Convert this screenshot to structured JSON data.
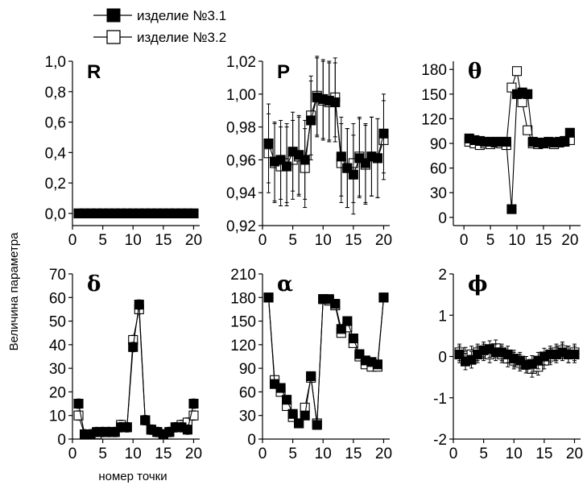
{
  "ylabel": "Величина параметра",
  "xlabel": "номер точки",
  "legend": {
    "items": [
      {
        "label": "изделие №3.1",
        "marker": "filled-square",
        "color": "#000000"
      },
      {
        "label": "изделие №3.2",
        "marker": "open-square",
        "color": "#000000"
      }
    ]
  },
  "chart_data": [
    {
      "type": "scatter",
      "title": "R",
      "title_style": "latin",
      "xlim": [
        0,
        21
      ],
      "ylim": [
        -0.08,
        1.0
      ],
      "xticks": [
        0,
        5,
        10,
        15,
        20
      ],
      "yticks": [
        0.0,
        0.2,
        0.4,
        0.6,
        0.8,
        1.0
      ],
      "ytick_labels": [
        "0,0",
        "0,2",
        "0,4",
        "0,6",
        "0,8",
        "1,0"
      ],
      "series": [
        {
          "name": "изделие №3.1",
          "connect": false,
          "x": [
            1,
            2,
            3,
            4,
            5,
            6,
            7,
            8,
            9,
            10,
            11,
            12,
            13,
            14,
            15,
            16,
            17,
            18,
            19,
            20
          ],
          "y": [
            0,
            0,
            0,
            0,
            0,
            0,
            0,
            0,
            0,
            0,
            0,
            0,
            0,
            0,
            0,
            0,
            0,
            0,
            0,
            0
          ],
          "err": [
            0.015,
            0.015,
            0.015,
            0.015,
            0.015,
            0.015,
            0.015,
            0.015,
            0.015,
            0.015,
            0.015,
            0.015,
            0.015,
            0.015,
            0.015,
            0.015,
            0.015,
            0.015,
            0.015,
            0.015
          ]
        },
        {
          "name": "изделие №3.2",
          "connect": false,
          "x": [
            1,
            2,
            3,
            4,
            5,
            6,
            7,
            8,
            9,
            10,
            11,
            12,
            13,
            14,
            15,
            16,
            17,
            18,
            19,
            20
          ],
          "y": [
            0,
            0,
            0,
            0,
            0,
            0,
            0,
            0,
            0,
            0,
            0,
            0,
            0,
            0,
            0,
            0,
            0,
            0,
            0,
            0
          ],
          "err": [
            0.015,
            0.015,
            0.015,
            0.015,
            0.015,
            0.015,
            0.015,
            0.015,
            0.015,
            0.015,
            0.015,
            0.015,
            0.015,
            0.015,
            0.015,
            0.015,
            0.015,
            0.015,
            0.015,
            0.015
          ]
        }
      ]
    },
    {
      "type": "scatter",
      "title": "P",
      "title_style": "latin",
      "xlim": [
        0,
        21
      ],
      "ylim": [
        0.92,
        1.02
      ],
      "xticks": [
        0,
        5,
        10,
        15,
        20
      ],
      "yticks": [
        0.92,
        0.94,
        0.96,
        0.98,
        1.0,
        1.02
      ],
      "ytick_labels": [
        "0,92",
        "0,94",
        "0,96",
        "0,98",
        "1,00",
        "1,02"
      ],
      "series": [
        {
          "name": "изделие №3.1",
          "connect": true,
          "x": [
            1,
            2,
            3,
            4,
            5,
            6,
            7,
            8,
            9,
            10,
            11,
            12,
            13,
            14,
            15,
            16,
            17,
            18,
            19,
            20
          ],
          "y": [
            0.97,
            0.959,
            0.96,
            0.956,
            0.965,
            0.963,
            0.96,
            0.984,
            0.998,
            0.997,
            0.996,
            0.995,
            0.962,
            0.955,
            0.951,
            0.961,
            0.958,
            0.962,
            0.961,
            0.976
          ],
          "err": [
            0.024,
            0.024,
            0.024,
            0.024,
            0.024,
            0.024,
            0.024,
            0.024,
            0.024,
            0.024,
            0.024,
            0.024,
            0.024,
            0.024,
            0.024,
            0.024,
            0.024,
            0.024,
            0.024,
            0.024
          ]
        },
        {
          "name": "изделие №3.2",
          "connect": true,
          "x": [
            1,
            2,
            3,
            4,
            5,
            6,
            7,
            8,
            9,
            10,
            11,
            12,
            13,
            14,
            15,
            16,
            17,
            18,
            19,
            20
          ],
          "y": [
            0.964,
            0.958,
            0.956,
            0.958,
            0.96,
            0.962,
            0.955,
            0.987,
            0.999,
            0.996,
            0.995,
            0.998,
            0.958,
            0.955,
            0.958,
            0.962,
            0.957,
            0.962,
            0.961,
            0.972
          ],
          "err": [
            0.024,
            0.024,
            0.024,
            0.024,
            0.024,
            0.024,
            0.024,
            0.024,
            0.024,
            0.024,
            0.024,
            0.024,
            0.024,
            0.024,
            0.024,
            0.024,
            0.024,
            0.024,
            0.024,
            0.024
          ]
        }
      ]
    },
    {
      "type": "scatter",
      "title": "θ",
      "title_style": "greek",
      "xlim": [
        -2,
        22
      ],
      "ylim": [
        -10,
        190
      ],
      "xticks": [
        0,
        5,
        10,
        15,
        20
      ],
      "yticks": [
        0,
        30,
        60,
        90,
        120,
        150,
        180
      ],
      "ytick_labels": [
        "0",
        "30",
        "60",
        "90",
        "120",
        "150",
        "180"
      ],
      "series": [
        {
          "name": "изделие №3.1",
          "connect": true,
          "x": [
            1,
            2,
            3,
            4,
            5,
            6,
            7,
            8,
            9,
            10,
            11,
            12,
            13,
            14,
            15,
            16,
            17,
            18,
            19,
            20
          ],
          "y": [
            96,
            94,
            93,
            92,
            92,
            92,
            92,
            92,
            10,
            150,
            152,
            150,
            92,
            91,
            90,
            92,
            91,
            92,
            93,
            103
          ],
          "err": [
            3,
            3,
            3,
            3,
            3,
            3,
            3,
            3,
            3,
            3,
            3,
            3,
            3,
            3,
            3,
            3,
            3,
            3,
            3,
            3
          ]
        },
        {
          "name": "изделие №3.2",
          "connect": true,
          "x": [
            1,
            2,
            3,
            4,
            5,
            6,
            7,
            8,
            9,
            10,
            11,
            12,
            13,
            14,
            15,
            16,
            17,
            18,
            19,
            20
          ],
          "y": [
            92,
            90,
            88,
            90,
            89,
            91,
            90,
            88,
            158,
            178,
            140,
            106,
            90,
            89,
            91,
            90,
            89,
            91,
            92,
            94
          ],
          "err": [
            3,
            3,
            3,
            3,
            3,
            3,
            3,
            3,
            3,
            3,
            3,
            3,
            3,
            3,
            3,
            3,
            3,
            3,
            3,
            3
          ]
        }
      ]
    },
    {
      "type": "scatter",
      "title": "δ",
      "title_style": "greek",
      "xlim": [
        0,
        21
      ],
      "ylim": [
        0,
        70
      ],
      "xticks": [
        0,
        5,
        10,
        15,
        20
      ],
      "yticks": [
        0,
        10,
        20,
        30,
        40,
        50,
        60,
        70
      ],
      "ytick_labels": [
        "0",
        "10",
        "20",
        "30",
        "40",
        "50",
        "60",
        "70"
      ],
      "series": [
        {
          "name": "изделие №3.1",
          "connect": true,
          "x": [
            1,
            2,
            3,
            4,
            5,
            6,
            7,
            8,
            9,
            10,
            11,
            12,
            13,
            14,
            15,
            16,
            17,
            18,
            19,
            20
          ],
          "y": [
            15,
            2,
            2,
            3,
            3,
            3,
            3,
            5,
            5,
            39,
            57,
            8,
            4,
            3,
            2,
            3,
            5,
            5,
            4,
            15
          ],
          "err": [
            2,
            2,
            2,
            2,
            2,
            2,
            2,
            2,
            2,
            2,
            2,
            2,
            2,
            2,
            2,
            2,
            2,
            2,
            2,
            2
          ]
        },
        {
          "name": "изделие №3.2",
          "connect": true,
          "x": [
            1,
            2,
            3,
            4,
            5,
            6,
            7,
            8,
            9,
            10,
            11,
            12,
            13,
            14,
            15,
            16,
            17,
            18,
            19,
            20
          ],
          "y": [
            10,
            2,
            2,
            2,
            3,
            3,
            3,
            6,
            5,
            42,
            55,
            8,
            4,
            3,
            2,
            3,
            5,
            6,
            7,
            10
          ],
          "err": [
            2,
            2,
            2,
            2,
            2,
            2,
            2,
            2,
            2,
            2,
            2,
            2,
            2,
            2,
            2,
            2,
            2,
            2,
            2,
            2
          ]
        }
      ]
    },
    {
      "type": "scatter",
      "title": "α",
      "title_style": "greek",
      "xlim": [
        0,
        21
      ],
      "ylim": [
        0,
        210
      ],
      "xticks": [
        0,
        5,
        10,
        15,
        20
      ],
      "yticks": [
        0,
        30,
        60,
        90,
        120,
        150,
        180,
        210
      ],
      "ytick_labels": [
        "0",
        "30",
        "60",
        "90",
        "120",
        "150",
        "180",
        "210"
      ],
      "series": [
        {
          "name": "изделие №3.1",
          "connect": true,
          "x": [
            1,
            2,
            3,
            4,
            5,
            6,
            7,
            8,
            9,
            10,
            11,
            12,
            13,
            14,
            15,
            16,
            17,
            18,
            19,
            20
          ],
          "y": [
            180,
            70,
            65,
            50,
            32,
            20,
            30,
            80,
            18,
            178,
            178,
            172,
            140,
            150,
            128,
            108,
            100,
            98,
            95,
            180
          ],
          "err": [
            5,
            5,
            5,
            5,
            5,
            5,
            5,
            5,
            5,
            5,
            5,
            5,
            5,
            5,
            5,
            5,
            5,
            5,
            5,
            5
          ]
        },
        {
          "name": "изделие №3.2",
          "connect": true,
          "x": [
            1,
            2,
            3,
            4,
            5,
            6,
            7,
            8,
            9,
            10,
            11,
            12,
            13,
            14,
            15,
            16,
            17,
            18,
            19,
            20
          ],
          "y": [
            180,
            75,
            60,
            42,
            28,
            20,
            40,
            78,
            20,
            178,
            176,
            170,
            135,
            142,
            122,
            105,
            95,
            92,
            92,
            180
          ],
          "err": [
            5,
            5,
            5,
            5,
            5,
            5,
            5,
            5,
            5,
            5,
            5,
            5,
            5,
            5,
            5,
            5,
            5,
            5,
            5,
            5
          ]
        }
      ]
    },
    {
      "type": "scatter",
      "title": "ϕ",
      "title_style": "greek",
      "xlim": [
        0,
        21
      ],
      "ylim": [
        -2,
        2
      ],
      "xticks": [
        0,
        5,
        10,
        15,
        20
      ],
      "yticks": [
        -2,
        -1,
        0,
        1,
        2
      ],
      "ytick_labels": [
        "-2",
        "-1",
        "0",
        "1",
        "2"
      ],
      "series": [
        {
          "name": "изделие №3.1",
          "connect": true,
          "x": [
            1,
            2,
            3,
            4,
            5,
            6,
            7,
            8,
            9,
            10,
            11,
            12,
            13,
            14,
            15,
            16,
            17,
            18,
            19,
            20
          ],
          "y": [
            0.05,
            -0.12,
            -0.08,
            0.05,
            0.15,
            0.18,
            0.1,
            0.1,
            0.05,
            -0.05,
            -0.1,
            -0.2,
            -0.18,
            -0.1,
            0.0,
            0.05,
            0.05,
            0.1,
            0.05,
            0.05
          ],
          "err": [
            0.2,
            0.2,
            0.2,
            0.2,
            0.2,
            0.2,
            0.2,
            0.2,
            0.2,
            0.2,
            0.2,
            0.2,
            0.2,
            0.2,
            0.2,
            0.2,
            0.2,
            0.2,
            0.2,
            0.2
          ]
        },
        {
          "name": "изделие №3.2",
          "connect": true,
          "x": [
            1,
            2,
            3,
            4,
            5,
            6,
            7,
            8,
            9,
            10,
            11,
            12,
            13,
            14,
            15,
            16,
            17,
            18,
            19,
            20
          ],
          "y": [
            0.1,
            0.02,
            0.05,
            0.1,
            0.1,
            0.05,
            0.2,
            0.05,
            -0.05,
            -0.1,
            -0.15,
            -0.2,
            -0.3,
            -0.25,
            -0.1,
            0.0,
            0.1,
            0.15,
            0.05,
            0.1
          ],
          "err": [
            0.2,
            0.2,
            0.2,
            0.2,
            0.2,
            0.2,
            0.2,
            0.2,
            0.2,
            0.2,
            0.2,
            0.2,
            0.2,
            0.2,
            0.2,
            0.2,
            0.2,
            0.2,
            0.2,
            0.2
          ]
        }
      ]
    }
  ]
}
